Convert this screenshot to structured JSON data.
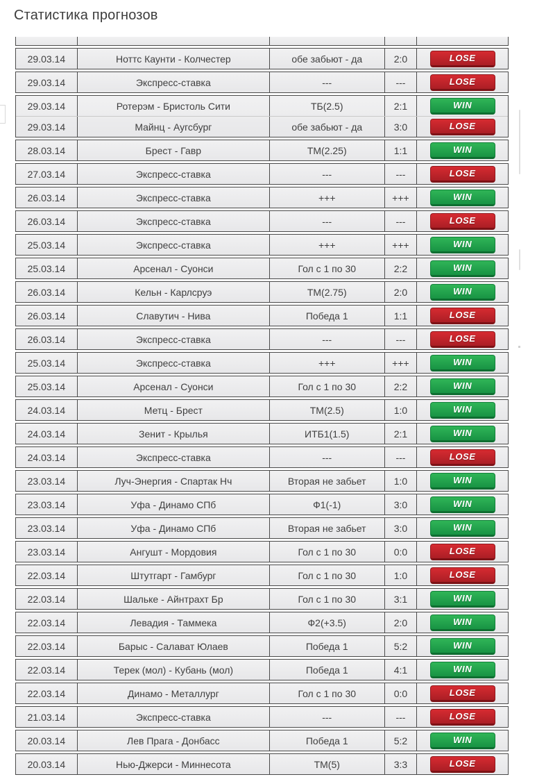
{
  "page": {
    "title": "Статистика прогнозов"
  },
  "colors": {
    "win_badge": "#23a34c",
    "lose_badge": "#c0242b",
    "row_background": "#ebebeb",
    "table_border": "#4a4a4a",
    "text": "#3f3f3f"
  },
  "table": {
    "result_labels": {
      "win": "WIN",
      "lose": "LOSE"
    },
    "groups": [
      [
        {
          "date": "29.03.14",
          "match": "Ноттс Каунти - Колчестер",
          "bet": "обе забьют - да",
          "score": "2:0",
          "result": "lose"
        }
      ],
      [
        {
          "date": "29.03.14",
          "match": "Экспресс-ставка",
          "bet": "---",
          "score": "---",
          "result": "lose"
        }
      ],
      [
        {
          "date": "29.03.14",
          "match": "Ротерэм - Бристоль Сити",
          "bet": "ТБ(2.5)",
          "score": "2:1",
          "result": "win"
        },
        {
          "date": "29.03.14",
          "match": "Майнц - Аугсбург",
          "bet": "обе забьют - да",
          "score": "3:0",
          "result": "lose"
        }
      ],
      [
        {
          "date": "28.03.14",
          "match": "Брест - Гавр",
          "bet": "ТМ(2.25)",
          "score": "1:1",
          "result": "win"
        }
      ],
      [
        {
          "date": "27.03.14",
          "match": "Экспресс-ставка",
          "bet": "---",
          "score": "---",
          "result": "lose"
        }
      ],
      [
        {
          "date": "26.03.14",
          "match": "Экспресс-ставка",
          "bet": "+++",
          "score": "+++",
          "result": "win"
        }
      ],
      [
        {
          "date": "26.03.14",
          "match": "Экспресс-ставка",
          "bet": "---",
          "score": "---",
          "result": "lose"
        }
      ],
      [
        {
          "date": "25.03.14",
          "match": "Экспресс-ставка",
          "bet": "+++",
          "score": "+++",
          "result": "win"
        }
      ],
      [
        {
          "date": "25.03.14",
          "match": "Арсенал - Суонси",
          "bet": "Гол с 1 по 30",
          "score": "2:2",
          "result": "win"
        }
      ],
      [
        {
          "date": "26.03.14",
          "match": "Кельн - Карлсруэ",
          "bet": "ТМ(2.75)",
          "score": "2:0",
          "result": "win"
        }
      ],
      [
        {
          "date": "26.03.14",
          "match": "Славутич - Нива",
          "bet": "Победа 1",
          "score": "1:1",
          "result": "lose"
        }
      ],
      [
        {
          "date": "26.03.14",
          "match": "Экспресс-ставка",
          "bet": "---",
          "score": "---",
          "result": "lose"
        }
      ],
      [
        {
          "date": "25.03.14",
          "match": "Экспресс-ставка",
          "bet": "+++",
          "score": "+++",
          "result": "win"
        }
      ],
      [
        {
          "date": "25.03.14",
          "match": "Арсенал - Суонси",
          "bet": "Гол с 1 по 30",
          "score": "2:2",
          "result": "win"
        }
      ],
      [
        {
          "date": "24.03.14",
          "match": "Метц - Брест",
          "bet": "ТМ(2.5)",
          "score": "1:0",
          "result": "win"
        }
      ],
      [
        {
          "date": "24.03.14",
          "match": "Зенит - Крылья",
          "bet": "ИТБ1(1.5)",
          "score": "2:1",
          "result": "win"
        }
      ],
      [
        {
          "date": "24.03.14",
          "match": "Экспресс-ставка",
          "bet": "---",
          "score": "---",
          "result": "lose"
        }
      ],
      [
        {
          "date": "23.03.14",
          "match": "Луч-Энергия - Спартак Нч",
          "bet": "Вторая не забьет",
          "score": "1:0",
          "result": "win"
        }
      ],
      [
        {
          "date": "23.03.14",
          "match": "Уфа - Динамо СПб",
          "bet": "Ф1(-1)",
          "score": "3:0",
          "result": "win"
        }
      ],
      [
        {
          "date": "23.03.14",
          "match": "Уфа - Динамо СПб",
          "bet": "Вторая не забьет",
          "score": "3:0",
          "result": "win"
        }
      ],
      [
        {
          "date": "23.03.14",
          "match": "Ангушт - Мордовия",
          "bet": "Гол с 1 по 30",
          "score": "0:0",
          "result": "lose"
        }
      ],
      [
        {
          "date": "22.03.14",
          "match": "Штутгарт - Гамбург",
          "bet": "Гол с 1 по 30",
          "score": "1:0",
          "result": "lose"
        }
      ],
      [
        {
          "date": "22.03.14",
          "match": "Шальке - Айнтрахт Бр",
          "bet": "Гол с 1 по 30",
          "score": "3:1",
          "result": "win"
        }
      ],
      [
        {
          "date": "22.03.14",
          "match": "Левадия - Таммека",
          "bet": "Ф2(+3.5)",
          "score": "2:0",
          "result": "win"
        }
      ],
      [
        {
          "date": "22.03.14",
          "match": "Барыс - Салават Юлаев",
          "bet": "Победа 1",
          "score": "5:2",
          "result": "win"
        }
      ],
      [
        {
          "date": "22.03.14",
          "match": "Терек (мол) - Кубань (мол)",
          "bet": "Победа 1",
          "score": "4:1",
          "result": "win"
        }
      ],
      [
        {
          "date": "22.03.14",
          "match": "Динамо - Металлург",
          "bet": "Гол с 1 по 30",
          "score": "0:0",
          "result": "lose"
        }
      ],
      [
        {
          "date": "21.03.14",
          "match": "Экспресс-ставка",
          "bet": "---",
          "score": "---",
          "result": "lose"
        }
      ],
      [
        {
          "date": "20.03.14",
          "match": "Лев Прага - Донбасс",
          "bet": "Победа 1",
          "score": "5:2",
          "result": "win"
        }
      ],
      [
        {
          "date": "20.03.14",
          "match": "Нью-Джерси - Миннесота",
          "bet": "ТМ(5)",
          "score": "3:3",
          "result": "lose"
        }
      ]
    ]
  }
}
